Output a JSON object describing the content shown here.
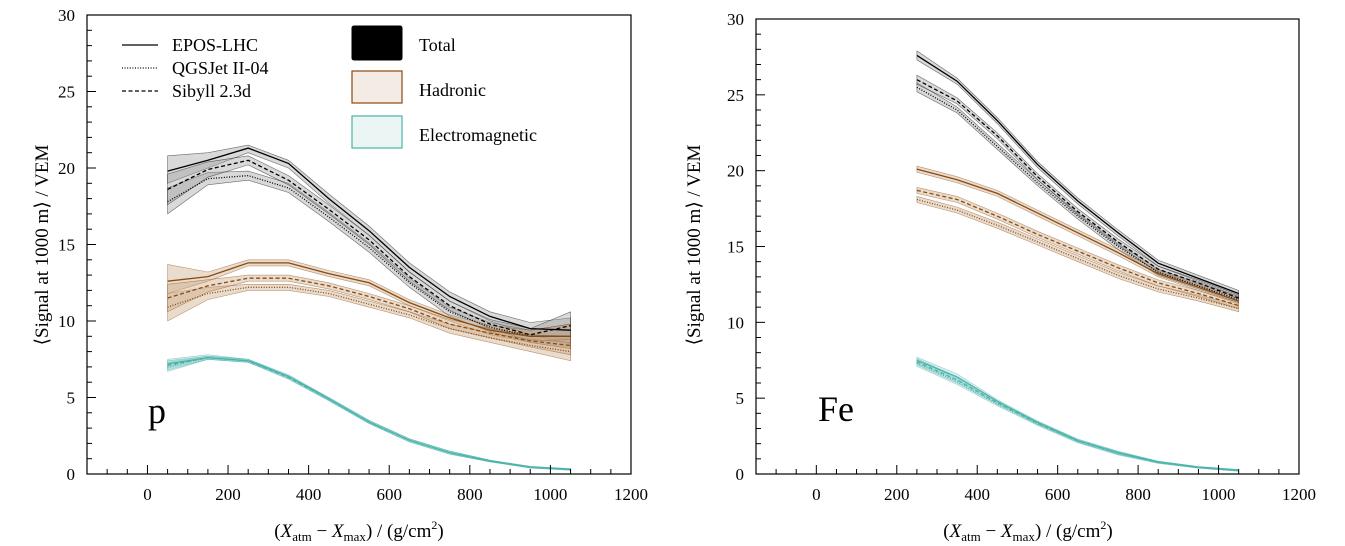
{
  "chart_data": [
    {
      "type": "line",
      "panel_label": "p",
      "xlabel": {
        "pre": "(",
        "X1": "X",
        "sub1": "atm",
        "minus": " − ",
        "X2": "X",
        "sub2": "max",
        "mid": ")  /  (g/cm",
        "sup": "2",
        "post": ")"
      },
      "ylabel": "⟨Signal at 1000 m⟩ / VEM",
      "xlim": [
        -150,
        1200
      ],
      "ylim": [
        0,
        30
      ],
      "xticks": [
        "0",
        "200",
        "400",
        "600",
        "800",
        "1000",
        "1200"
      ],
      "yticks": [
        "0",
        "5",
        "10",
        "15",
        "20",
        "25",
        "30"
      ],
      "x": [
        50,
        150,
        250,
        350,
        450,
        550,
        650,
        750,
        850,
        950,
        1050
      ],
      "series": [
        {
          "component": "Total",
          "model": "EPOS-LHC",
          "color": "#000000",
          "values": [
            19.8,
            20.5,
            21.3,
            20.3,
            18.0,
            15.9,
            13.5,
            11.6,
            10.3,
            9.5,
            9.4
          ],
          "lower": [
            19.0,
            20.0,
            21.0,
            20.0,
            17.7,
            15.6,
            13.2,
            11.3,
            10.0,
            9.1,
            8.5
          ],
          "upper": [
            20.8,
            21.0,
            21.5,
            20.5,
            18.3,
            16.2,
            13.8,
            11.9,
            10.6,
            9.9,
            10.2
          ]
        },
        {
          "component": "Total",
          "model": "QGSJet II-04",
          "color": "#000000",
          "values": [
            17.8,
            19.3,
            19.5,
            18.7,
            16.8,
            14.8,
            12.5,
            10.6,
            9.6,
            9.0,
            9.0
          ],
          "lower": [
            17.0,
            18.9,
            19.2,
            18.4,
            16.5,
            14.5,
            12.2,
            10.3,
            9.3,
            8.6,
            8.2
          ],
          "upper": [
            18.7,
            19.7,
            19.8,
            19.0,
            17.1,
            15.1,
            12.8,
            10.9,
            9.9,
            9.4,
            9.8
          ]
        },
        {
          "component": "Total",
          "model": "Sibyll 2.3d",
          "color": "#000000",
          "values": [
            18.6,
            19.9,
            20.5,
            19.2,
            17.3,
            15.3,
            12.9,
            11.0,
            9.8,
            9.1,
            9.7
          ],
          "lower": [
            17.6,
            19.4,
            20.2,
            18.9,
            17.0,
            15.0,
            12.6,
            10.7,
            9.5,
            8.7,
            8.8
          ],
          "upper": [
            19.6,
            20.4,
            20.8,
            19.5,
            17.6,
            15.6,
            13.2,
            11.3,
            10.1,
            9.5,
            10.6
          ]
        },
        {
          "component": "Hadronic",
          "model": "EPOS-LHC",
          "color": "#8a4a12",
          "values": [
            12.6,
            12.9,
            13.8,
            13.8,
            13.1,
            12.5,
            11.2,
            10.2,
            9.4,
            9.0,
            9.0
          ],
          "lower": [
            11.8,
            12.6,
            13.6,
            13.6,
            12.9,
            12.3,
            11.0,
            10.0,
            9.1,
            8.6,
            8.2
          ],
          "upper": [
            13.7,
            13.2,
            14.0,
            14.0,
            13.3,
            12.7,
            11.4,
            10.4,
            9.7,
            9.4,
            9.8
          ]
        },
        {
          "component": "Hadronic",
          "model": "QGSJet II-04",
          "color": "#8a4a12",
          "values": [
            10.9,
            11.8,
            12.2,
            12.2,
            11.8,
            11.1,
            10.4,
            9.5,
            8.9,
            8.4,
            8.0
          ],
          "lower": [
            10.0,
            11.4,
            12.0,
            12.0,
            11.6,
            10.9,
            10.2,
            9.2,
            8.6,
            8.0,
            7.4
          ],
          "upper": [
            11.8,
            12.2,
            12.4,
            12.4,
            12.0,
            11.3,
            10.6,
            9.8,
            9.2,
            8.8,
            8.6
          ]
        },
        {
          "component": "Hadronic",
          "model": "Sibyll 2.3d",
          "color": "#8a4a12",
          "values": [
            11.5,
            12.3,
            12.8,
            12.8,
            12.3,
            11.6,
            10.8,
            9.8,
            9.2,
            8.7,
            8.4
          ],
          "lower": [
            10.6,
            11.9,
            12.6,
            12.6,
            12.1,
            11.4,
            10.6,
            9.5,
            8.9,
            8.3,
            7.8
          ],
          "upper": [
            12.4,
            12.7,
            13.0,
            13.0,
            12.5,
            11.8,
            11.0,
            10.1,
            9.5,
            9.1,
            9.0
          ]
        },
        {
          "component": "Electromagnetic",
          "model": "EPOS-LHC",
          "color": "#4cb3ab",
          "values": [
            7.2,
            7.6,
            7.4,
            6.4,
            4.9,
            3.4,
            2.2,
            1.4,
            0.85,
            0.45,
            0.3
          ],
          "lower": [
            6.9,
            7.5,
            7.3,
            6.3,
            4.8,
            3.3,
            2.1,
            1.3,
            0.8,
            0.4,
            0.25
          ],
          "upper": [
            7.5,
            7.8,
            7.5,
            6.5,
            5.0,
            3.5,
            2.3,
            1.5,
            0.9,
            0.5,
            0.35
          ]
        },
        {
          "component": "Electromagnetic",
          "model": "QGSJet II-04",
          "color": "#4cb3ab",
          "values": [
            7.0,
            7.6,
            7.4,
            6.3,
            4.9,
            3.4,
            2.2,
            1.4,
            0.85,
            0.45,
            0.3
          ],
          "lower": [
            6.7,
            7.5,
            7.3,
            6.2,
            4.8,
            3.3,
            2.1,
            1.3,
            0.8,
            0.4,
            0.25
          ],
          "upper": [
            7.3,
            7.7,
            7.5,
            6.4,
            5.0,
            3.5,
            2.3,
            1.5,
            0.9,
            0.5,
            0.35
          ]
        },
        {
          "component": "Electromagnetic",
          "model": "Sibyll 2.3d",
          "color": "#4cb3ab",
          "values": [
            7.1,
            7.6,
            7.4,
            6.3,
            4.9,
            3.4,
            2.2,
            1.4,
            0.85,
            0.45,
            0.3
          ],
          "lower": [
            6.8,
            7.5,
            7.3,
            6.2,
            4.8,
            3.3,
            2.1,
            1.3,
            0.8,
            0.4,
            0.25
          ],
          "upper": [
            7.4,
            7.7,
            7.5,
            6.4,
            5.0,
            3.5,
            2.3,
            1.5,
            0.9,
            0.5,
            0.35
          ]
        }
      ]
    },
    {
      "type": "line",
      "panel_label": "Fe",
      "xlabel": {
        "pre": "(",
        "X1": "X",
        "sub1": "atm",
        "minus": " − ",
        "X2": "X",
        "sub2": "max",
        "mid": ")  /  (g/cm",
        "sup": "2",
        "post": ")"
      },
      "ylabel": "⟨Signal at 1000 m⟩ / VEM",
      "xlim": [
        -150,
        1200
      ],
      "ylim": [
        0,
        30
      ],
      "xticks": [
        "0",
        "200",
        "400",
        "600",
        "800",
        "1000",
        "1200"
      ],
      "yticks": [
        "0",
        "5",
        "10",
        "15",
        "20",
        "25",
        "30"
      ],
      "x": [
        250,
        350,
        450,
        550,
        650,
        750,
        850,
        950,
        1050
      ],
      "series": [
        {
          "component": "Total",
          "model": "EPOS-LHC",
          "color": "#000000",
          "values": [
            27.6,
            25.9,
            23.3,
            20.4,
            18.0,
            15.9,
            13.9,
            12.9,
            11.9
          ],
          "lower": [
            27.3,
            25.7,
            23.1,
            20.2,
            17.8,
            15.7,
            13.7,
            12.7,
            11.7
          ],
          "upper": [
            27.9,
            26.1,
            23.5,
            20.6,
            18.2,
            16.1,
            14.1,
            13.1,
            12.1
          ]
        },
        {
          "component": "Total",
          "model": "QGSJet II-04",
          "color": "#000000",
          "values": [
            25.5,
            24.0,
            21.6,
            19.2,
            17.0,
            15.0,
            13.3,
            12.4,
            11.5
          ],
          "lower": [
            25.2,
            23.8,
            21.4,
            19.0,
            16.8,
            14.8,
            13.1,
            12.2,
            11.3
          ],
          "upper": [
            25.8,
            24.2,
            21.8,
            19.4,
            17.2,
            15.2,
            13.5,
            12.6,
            11.7
          ]
        },
        {
          "component": "Total",
          "model": "Sibyll 2.3d",
          "color": "#000000",
          "values": [
            26.0,
            24.6,
            22.3,
            19.6,
            17.3,
            15.3,
            13.5,
            12.6,
            11.6
          ],
          "lower": [
            25.7,
            24.4,
            22.1,
            19.4,
            17.1,
            15.1,
            13.3,
            12.4,
            11.4
          ],
          "upper": [
            26.3,
            24.8,
            22.5,
            19.8,
            17.5,
            15.5,
            13.7,
            12.8,
            11.8
          ]
        },
        {
          "component": "Hadronic",
          "model": "EPOS-LHC",
          "color": "#8a4a12",
          "values": [
            20.1,
            19.4,
            18.5,
            17.2,
            15.9,
            14.6,
            13.2,
            12.3,
            11.4
          ],
          "lower": [
            19.9,
            19.2,
            18.3,
            17.0,
            15.7,
            14.4,
            13.0,
            12.1,
            11.2
          ],
          "upper": [
            20.3,
            19.6,
            18.7,
            17.4,
            16.1,
            14.8,
            13.4,
            12.5,
            11.6
          ]
        },
        {
          "component": "Hadronic",
          "model": "QGSJet II-04",
          "color": "#8a4a12",
          "values": [
            18.1,
            17.4,
            16.4,
            15.3,
            14.2,
            13.1,
            12.2,
            11.6,
            10.9
          ],
          "lower": [
            17.9,
            17.2,
            16.2,
            15.1,
            14.0,
            12.9,
            12.0,
            11.4,
            10.7
          ],
          "upper": [
            18.3,
            17.6,
            16.6,
            15.5,
            14.4,
            13.3,
            12.4,
            11.8,
            11.1
          ]
        },
        {
          "component": "Hadronic",
          "model": "Sibyll 2.3d",
          "color": "#8a4a12",
          "values": [
            18.7,
            18.1,
            17.0,
            15.8,
            14.7,
            13.6,
            12.6,
            11.9,
            11.1
          ],
          "lower": [
            18.5,
            17.9,
            16.8,
            15.6,
            14.5,
            13.4,
            12.4,
            11.7,
            10.9
          ],
          "upper": [
            18.9,
            18.3,
            17.2,
            16.0,
            14.9,
            13.8,
            12.8,
            12.1,
            11.3
          ]
        },
        {
          "component": "Electromagnetic",
          "model": "EPOS-LHC",
          "color": "#4cb3ab",
          "values": [
            7.5,
            6.4,
            4.8,
            3.4,
            2.2,
            1.4,
            0.8,
            0.45,
            0.25
          ],
          "lower": [
            7.3,
            6.2,
            4.7,
            3.3,
            2.1,
            1.3,
            0.75,
            0.4,
            0.2
          ],
          "upper": [
            7.7,
            6.6,
            4.9,
            3.5,
            2.3,
            1.5,
            0.85,
            0.5,
            0.3
          ]
        },
        {
          "component": "Electromagnetic",
          "model": "QGSJet II-04",
          "color": "#4cb3ab",
          "values": [
            7.3,
            6.1,
            4.6,
            3.3,
            2.15,
            1.35,
            0.75,
            0.42,
            0.22
          ],
          "lower": [
            7.1,
            5.9,
            4.5,
            3.2,
            2.05,
            1.25,
            0.7,
            0.38,
            0.18
          ],
          "upper": [
            7.5,
            6.3,
            4.7,
            3.4,
            2.25,
            1.45,
            0.8,
            0.46,
            0.26
          ]
        },
        {
          "component": "Electromagnetic",
          "model": "Sibyll 2.3d",
          "color": "#4cb3ab",
          "values": [
            7.4,
            6.2,
            4.7,
            3.35,
            2.2,
            1.4,
            0.78,
            0.44,
            0.24
          ],
          "lower": [
            7.2,
            6.0,
            4.6,
            3.25,
            2.1,
            1.3,
            0.73,
            0.4,
            0.2
          ],
          "upper": [
            7.6,
            6.4,
            4.8,
            3.45,
            2.3,
            1.5,
            0.83,
            0.48,
            0.28
          ]
        }
      ]
    }
  ],
  "legend": {
    "models": [
      {
        "label": "EPOS-LHC",
        "style": "solid"
      },
      {
        "label": "QGSJet II-04",
        "style": "dotted"
      },
      {
        "label": "Sibyll 2.3d",
        "style": "dashed"
      }
    ],
    "components": [
      {
        "label": "Total",
        "fill": "#000000",
        "stroke": "#000000"
      },
      {
        "label": "Hadronic",
        "fill": "#f3ebe4",
        "stroke": "#8a4a12"
      },
      {
        "label": "Electromagnetic",
        "fill": "#eaf5f4",
        "stroke": "#4cb3ab"
      }
    ]
  }
}
